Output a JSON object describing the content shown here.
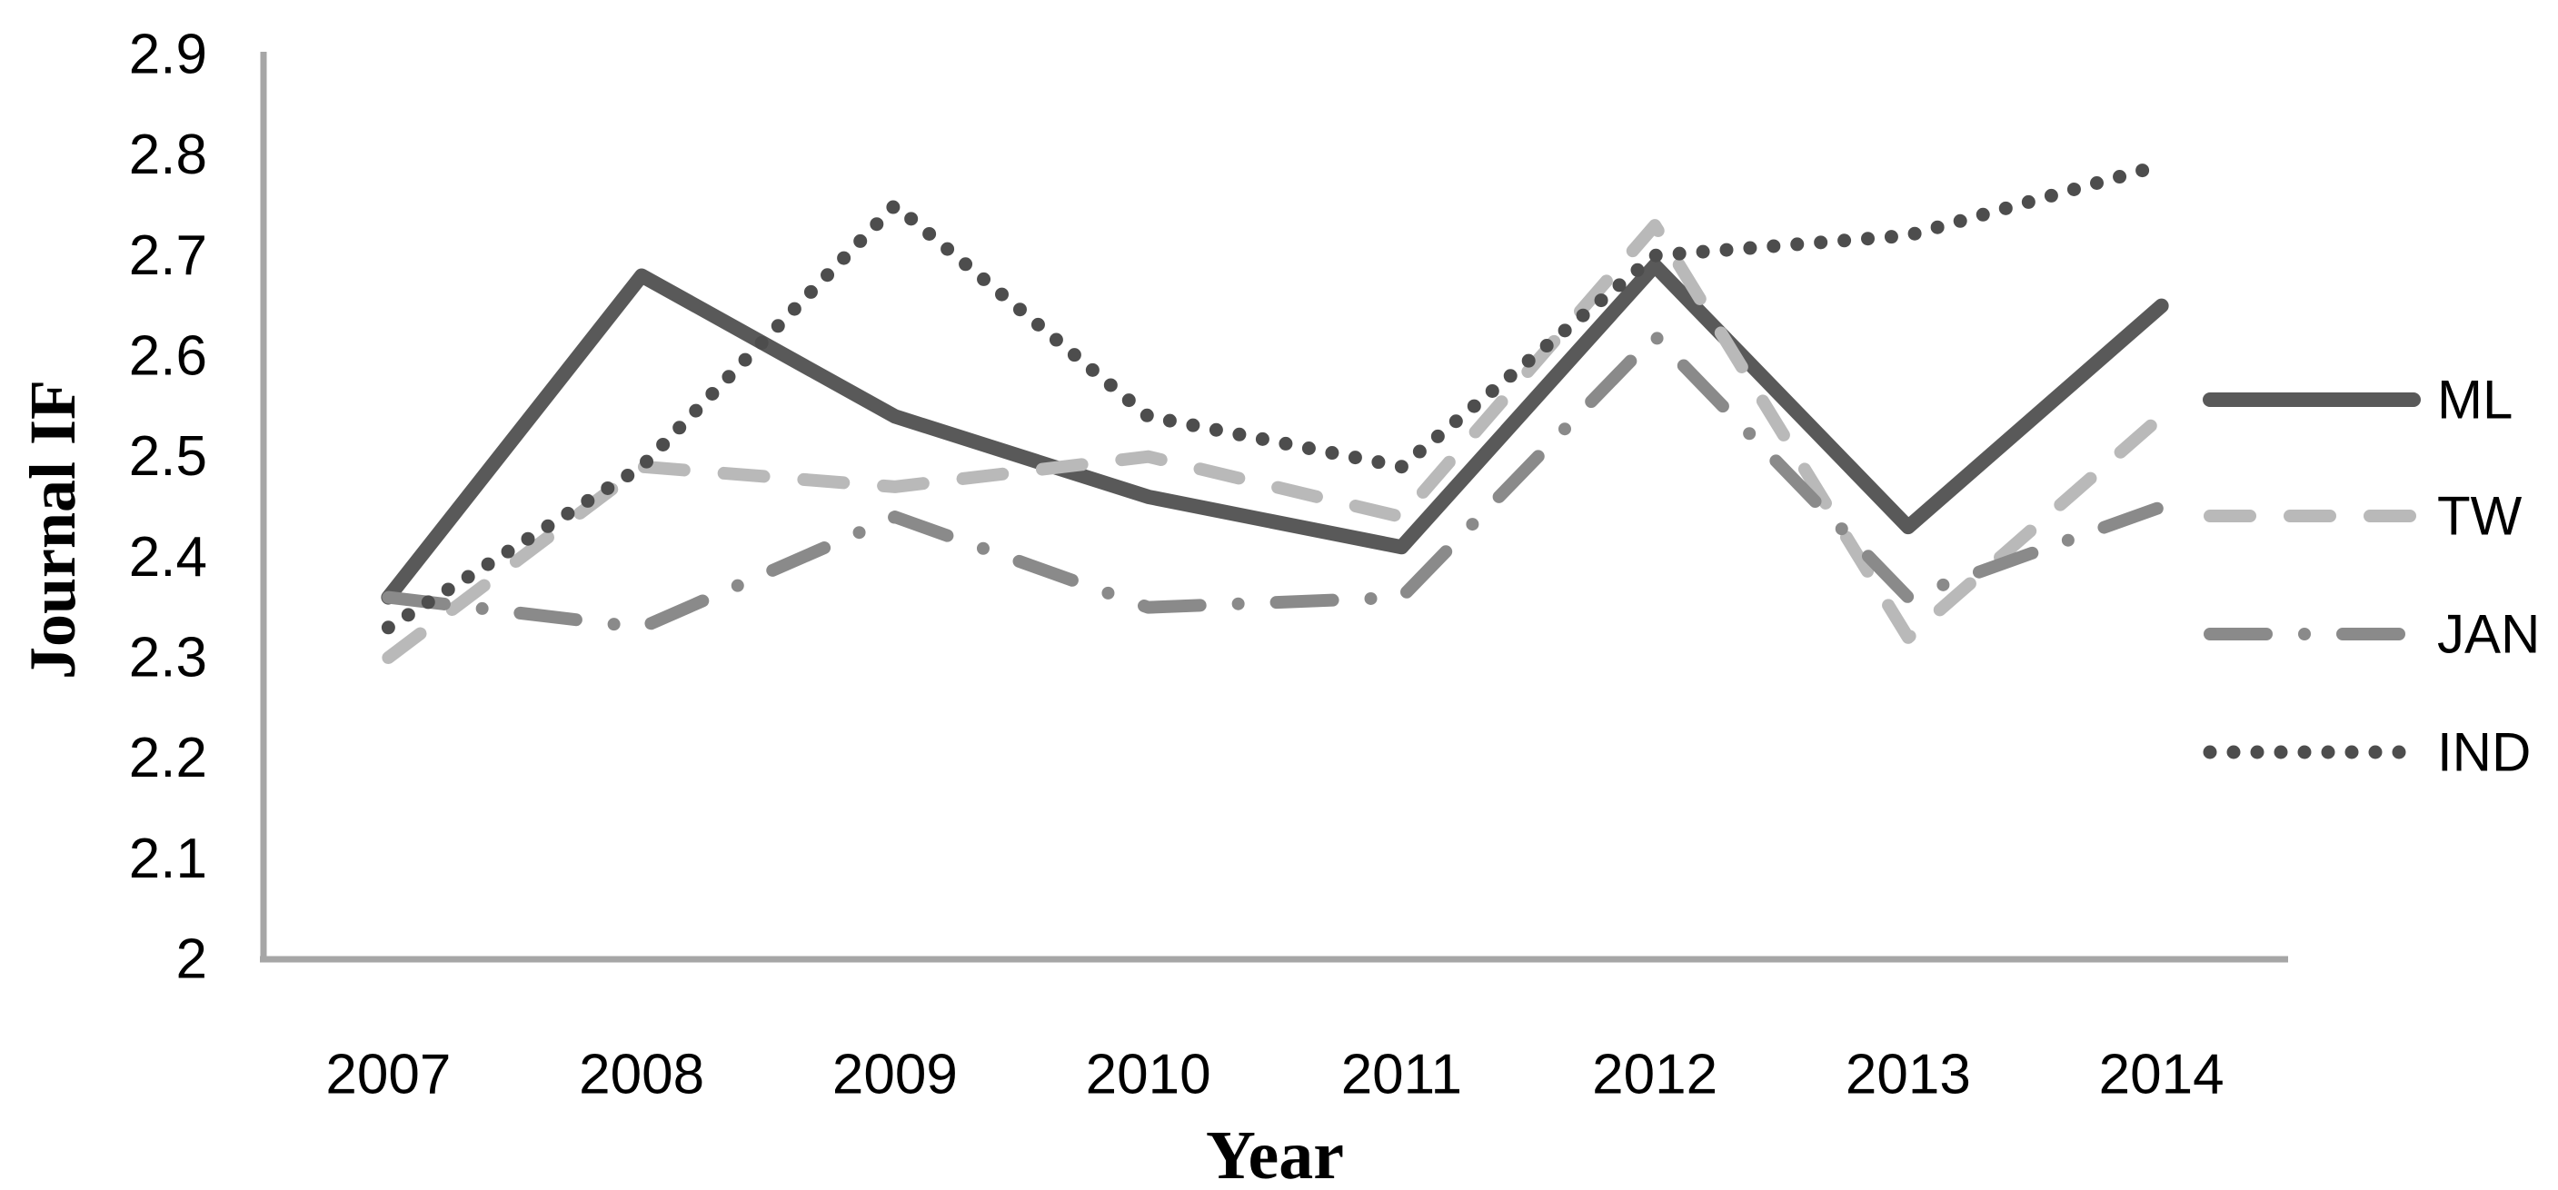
{
  "chart_data": {
    "type": "line",
    "title": "",
    "xlabel": "Year",
    "ylabel": "Journal IF",
    "categories": [
      "2007",
      "2008",
      "2009",
      "2010",
      "2011",
      "2012",
      "2013",
      "2014"
    ],
    "y_axis": {
      "min": 2,
      "max": 2.9,
      "tick_step": 0.1,
      "tick_labels": [
        "2",
        "2.1",
        "2.2",
        "2.3",
        "2.4",
        "2.5",
        "2.6",
        "2.7",
        "2.8",
        "2.9"
      ]
    },
    "grid": false,
    "legend_position": "right",
    "series": [
      {
        "name": "ML",
        "style": "solid",
        "color": "#595959",
        "values": [
          2.36,
          2.68,
          2.54,
          2.46,
          2.41,
          2.69,
          2.43,
          2.65
        ]
      },
      {
        "name": "TW",
        "style": "dashed",
        "color": "#b9b9b9",
        "values": [
          2.3,
          2.49,
          2.47,
          2.5,
          2.44,
          2.73,
          2.32,
          2.54
        ]
      },
      {
        "name": "JAN",
        "style": "dash-dot",
        "color": "#8a8a8a",
        "values": [
          2.36,
          2.33,
          2.44,
          2.35,
          2.36,
          2.62,
          2.36,
          2.45
        ]
      },
      {
        "name": "IND",
        "style": "dotted",
        "color": "#4d4d4d",
        "values": [
          2.33,
          2.49,
          2.75,
          2.54,
          2.49,
          2.7,
          2.72,
          2.79
        ]
      }
    ]
  },
  "colors": {
    "axis": "#a6a6a6",
    "text": "#000000",
    "background": "#ffffff"
  }
}
